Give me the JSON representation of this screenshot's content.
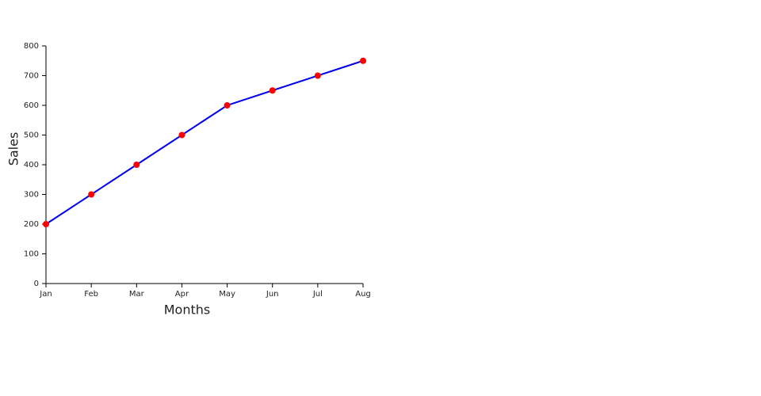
{
  "chart_data": {
    "type": "line",
    "x_label": "Months",
    "y_label": "Sales",
    "categories": [
      "Jan",
      "Feb",
      "Mar",
      "Apr",
      "May",
      "Jun",
      "Jul",
      "Aug"
    ],
    "values": [
      200,
      300,
      400,
      500,
      600,
      650,
      700,
      750
    ],
    "color": "#0000ee",
    "marker_color": "#ff0000",
    "ylim": [
      0,
      800
    ],
    "yticks": [
      0,
      100,
      200,
      300,
      400,
      500,
      600,
      700,
      800
    ],
    "grid": false
  }
}
